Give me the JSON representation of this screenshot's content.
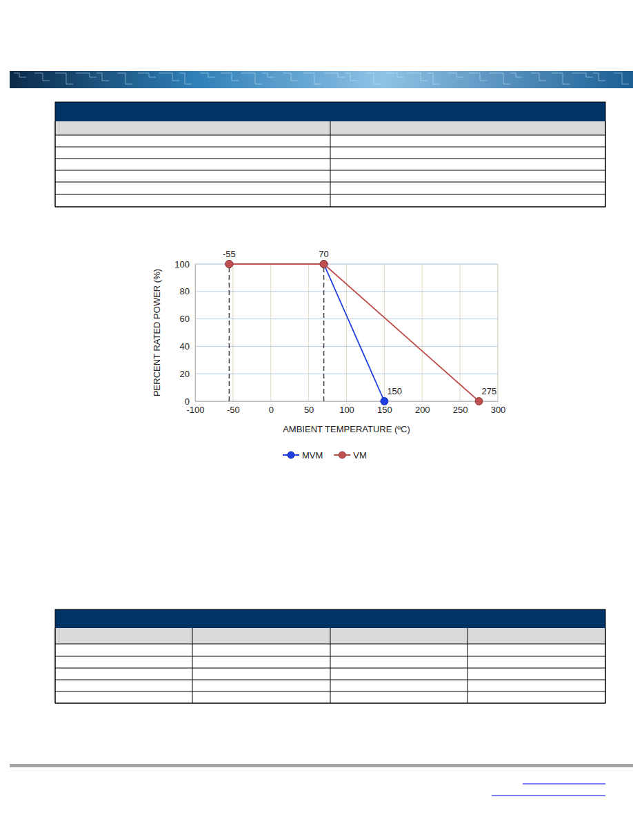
{
  "chart_data": {
    "type": "line",
    "x_label": "AMBIENT TEMPERATURE (ºC)",
    "y_label": "PERCENT RATED POWER (%)",
    "xlim": [
      -100,
      300
    ],
    "xticks": [
      -100,
      -50,
      0,
      50,
      100,
      150,
      200,
      250,
      300
    ],
    "ylim": [
      0,
      100
    ],
    "yticks": [
      0,
      20,
      40,
      60,
      80,
      100
    ],
    "grid": true,
    "legend": "bottom",
    "series": [
      {
        "name": "MVM",
        "color": "#1f3fe0",
        "marker": "circle",
        "x": [
          -55,
          70,
          150
        ],
        "values": [
          100,
          100,
          0
        ]
      },
      {
        "name": "VM",
        "color": "#c0504d",
        "marker": "circle",
        "x": [
          -55,
          70,
          275
        ],
        "values": [
          100,
          100,
          0
        ]
      }
    ],
    "reference_lines": [
      {
        "x": -55
      },
      {
        "x": 70
      }
    ],
    "annotations": [
      {
        "text": "-55",
        "x": -55,
        "y": 100
      },
      {
        "text": "70",
        "x": 70,
        "y": 100
      },
      {
        "text": "150",
        "x": 150,
        "y": 0
      },
      {
        "text": "275",
        "x": 275,
        "y": 0
      }
    ]
  }
}
